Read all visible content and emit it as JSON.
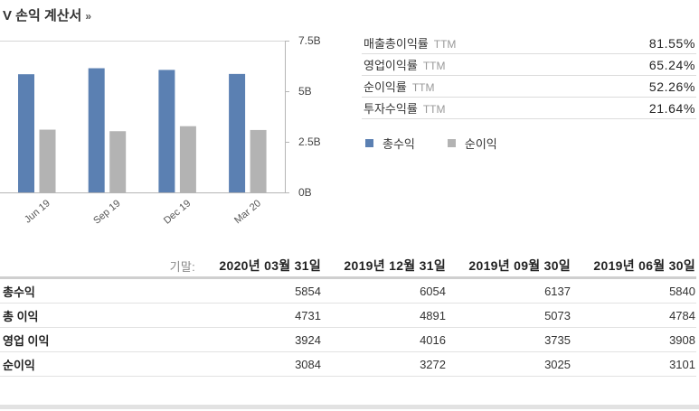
{
  "title": {
    "text": "V 손익 계산서",
    "arrow": "»"
  },
  "chart_data": {
    "type": "bar",
    "categories": [
      "Jun 19",
      "Sep 19",
      "Dec 19",
      "Mar 20"
    ],
    "series": [
      {
        "name": "총수익",
        "values": [
          5.84,
          6.137,
          6.054,
          5.854
        ],
        "color": "#5b80b2"
      },
      {
        "name": "순이익",
        "values": [
          3.101,
          3.025,
          3.272,
          3.084
        ],
        "color": "#b3b3b3"
      }
    ],
    "y_ticks": [
      {
        "value": 0,
        "label": "0B"
      },
      {
        "value": 2.5,
        "label": "2.5B"
      },
      {
        "value": 5,
        "label": "5B"
      },
      {
        "value": 7.5,
        "label": "7.5B"
      }
    ],
    "ylim": [
      0,
      7.5
    ],
    "y_axis_side": "right",
    "grid": false,
    "legend": "right"
  },
  "ratios": [
    {
      "label": "매출총이익률",
      "suffix": "TTM",
      "value": "81.55%"
    },
    {
      "label": "영업이익률",
      "suffix": "TTM",
      "value": "65.24%"
    },
    {
      "label": "순이익률",
      "suffix": "TTM",
      "value": "52.26%"
    },
    {
      "label": "투자수익률",
      "suffix": "TTM",
      "value": "21.64%"
    }
  ],
  "income_table": {
    "period_label": "기말:",
    "periods": [
      "2020년 03월 31일",
      "2019년 12월 31일",
      "2019년 09월 30일",
      "2019년 06월 30일"
    ],
    "rows": [
      {
        "label": "총수익",
        "values": [
          "5854",
          "6054",
          "6137",
          "5840"
        ]
      },
      {
        "label": "총 이익",
        "values": [
          "4731",
          "4891",
          "5073",
          "4784"
        ]
      },
      {
        "label": "영업 이익",
        "values": [
          "3924",
          "4016",
          "3735",
          "3908"
        ]
      },
      {
        "label": "순이익",
        "values": [
          "3084",
          "3272",
          "3025",
          "3101"
        ]
      }
    ]
  }
}
